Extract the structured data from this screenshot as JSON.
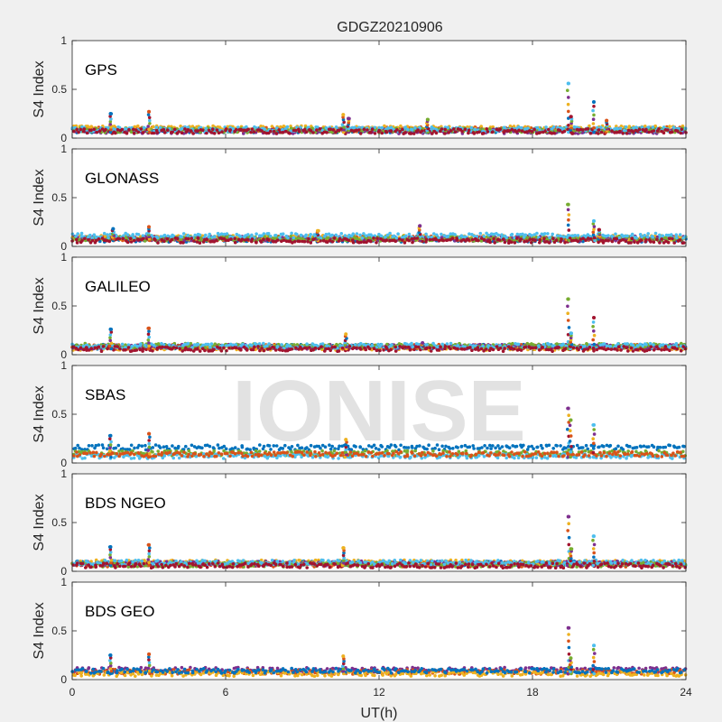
{
  "figure": {
    "title": "GDGZ20210906",
    "xlabel": "UT(h)",
    "watermark": "IONISE"
  },
  "chart_data": {
    "type": "scatter",
    "title": "GDGZ20210906",
    "xlabel": "UT(h)",
    "ylabel": "S4 Index",
    "xlim": [
      0,
      24
    ],
    "ylim": [
      0,
      1
    ],
    "xticks": [
      0,
      6,
      12,
      18,
      24
    ],
    "xtick_labels": [
      "0",
      "6",
      "12",
      "18",
      "24"
    ],
    "yticks": [
      0,
      0.5,
      1
    ],
    "ytick_labels": [
      "0",
      "0.5",
      "1"
    ],
    "grid": false,
    "series_colors": [
      "#0072bd",
      "#d95319",
      "#edb120",
      "#7e2f8e",
      "#77ac30",
      "#4dbeee",
      "#a2142f"
    ],
    "panels": [
      {
        "label": "GPS",
        "baseline": [
          {
            "color": "#0072bd",
            "level": 0.08
          },
          {
            "color": "#d95319",
            "level": 0.09
          },
          {
            "color": "#edb120",
            "level": 0.1
          },
          {
            "color": "#7e2f8e",
            "level": 0.07
          },
          {
            "color": "#77ac30",
            "level": 0.08
          },
          {
            "color": "#4dbeee",
            "level": 0.09
          },
          {
            "color": "#a2142f",
            "level": 0.07
          }
        ],
        "spikes": [
          {
            "x": 1.5,
            "y": 0.25
          },
          {
            "x": 3.0,
            "y": 0.27
          },
          {
            "x": 10.6,
            "y": 0.24
          },
          {
            "x": 10.8,
            "y": 0.2
          },
          {
            "x": 13.9,
            "y": 0.19
          },
          {
            "x": 19.4,
            "y": 0.56
          },
          {
            "x": 19.5,
            "y": 0.22
          },
          {
            "x": 20.4,
            "y": 0.37
          },
          {
            "x": 20.9,
            "y": 0.18
          }
        ]
      },
      {
        "label": "GLONASS",
        "baseline": [
          {
            "color": "#0072bd",
            "level": 0.07
          },
          {
            "color": "#d95319",
            "level": 0.08
          },
          {
            "color": "#edb120",
            "level": 0.09
          },
          {
            "color": "#7e2f8e",
            "level": 0.08
          },
          {
            "color": "#77ac30",
            "level": 0.08
          },
          {
            "color": "#4dbeee",
            "level": 0.11
          },
          {
            "color": "#a2142f",
            "level": 0.06
          }
        ],
        "spikes": [
          {
            "x": 1.6,
            "y": 0.18
          },
          {
            "x": 3.0,
            "y": 0.2
          },
          {
            "x": 9.6,
            "y": 0.16
          },
          {
            "x": 13.6,
            "y": 0.21
          },
          {
            "x": 19.4,
            "y": 0.43
          },
          {
            "x": 20.4,
            "y": 0.26
          },
          {
            "x": 20.6,
            "y": 0.17
          }
        ]
      },
      {
        "label": "GALILEO",
        "baseline": [
          {
            "color": "#0072bd",
            "level": 0.08
          },
          {
            "color": "#d95319",
            "level": 0.08
          },
          {
            "color": "#edb120",
            "level": 0.07
          },
          {
            "color": "#7e2f8e",
            "level": 0.08
          },
          {
            "color": "#77ac30",
            "level": 0.09
          },
          {
            "color": "#4dbeee",
            "level": 0.09
          },
          {
            "color": "#a2142f",
            "level": 0.06
          }
        ],
        "spikes": [
          {
            "x": 1.5,
            "y": 0.26
          },
          {
            "x": 3.0,
            "y": 0.27
          },
          {
            "x": 10.7,
            "y": 0.21
          },
          {
            "x": 13.7,
            "y": 0.12
          },
          {
            "x": 19.4,
            "y": 0.57
          },
          {
            "x": 19.5,
            "y": 0.22
          },
          {
            "x": 20.4,
            "y": 0.38
          }
        ]
      },
      {
        "label": "SBAS",
        "baseline": [
          {
            "color": "#0072bd",
            "level": 0.16
          },
          {
            "color": "#77ac30",
            "level": 0.1
          },
          {
            "color": "#4dbeee",
            "level": 0.07
          },
          {
            "color": "#d95319",
            "level": 0.09
          }
        ],
        "spikes": [
          {
            "x": 1.5,
            "y": 0.28
          },
          {
            "x": 3.0,
            "y": 0.3
          },
          {
            "x": 10.7,
            "y": 0.24
          },
          {
            "x": 19.4,
            "y": 0.56
          },
          {
            "x": 19.5,
            "y": 0.44
          },
          {
            "x": 20.4,
            "y": 0.39
          }
        ]
      },
      {
        "label": "BDS NGEO",
        "baseline": [
          {
            "color": "#0072bd",
            "level": 0.08
          },
          {
            "color": "#d95319",
            "level": 0.07
          },
          {
            "color": "#edb120",
            "level": 0.09
          },
          {
            "color": "#7e2f8e",
            "level": 0.08
          },
          {
            "color": "#77ac30",
            "level": 0.07
          },
          {
            "color": "#4dbeee",
            "level": 0.09
          },
          {
            "color": "#a2142f",
            "level": 0.06
          }
        ],
        "spikes": [
          {
            "x": 1.5,
            "y": 0.25
          },
          {
            "x": 3.0,
            "y": 0.27
          },
          {
            "x": 10.6,
            "y": 0.24
          },
          {
            "x": 19.4,
            "y": 0.56
          },
          {
            "x": 19.5,
            "y": 0.23
          },
          {
            "x": 20.4,
            "y": 0.36
          }
        ]
      },
      {
        "label": "BDS GEO",
        "baseline": [
          {
            "color": "#7e2f8e",
            "level": 0.1
          },
          {
            "color": "#d95319",
            "level": 0.08
          },
          {
            "color": "#edb120",
            "level": 0.06
          },
          {
            "color": "#0072bd",
            "level": 0.09
          }
        ],
        "spikes": [
          {
            "x": 1.5,
            "y": 0.25
          },
          {
            "x": 3.0,
            "y": 0.26
          },
          {
            "x": 10.6,
            "y": 0.24
          },
          {
            "x": 19.4,
            "y": 0.53
          },
          {
            "x": 19.5,
            "y": 0.22
          },
          {
            "x": 20.4,
            "y": 0.35
          }
        ]
      }
    ]
  }
}
